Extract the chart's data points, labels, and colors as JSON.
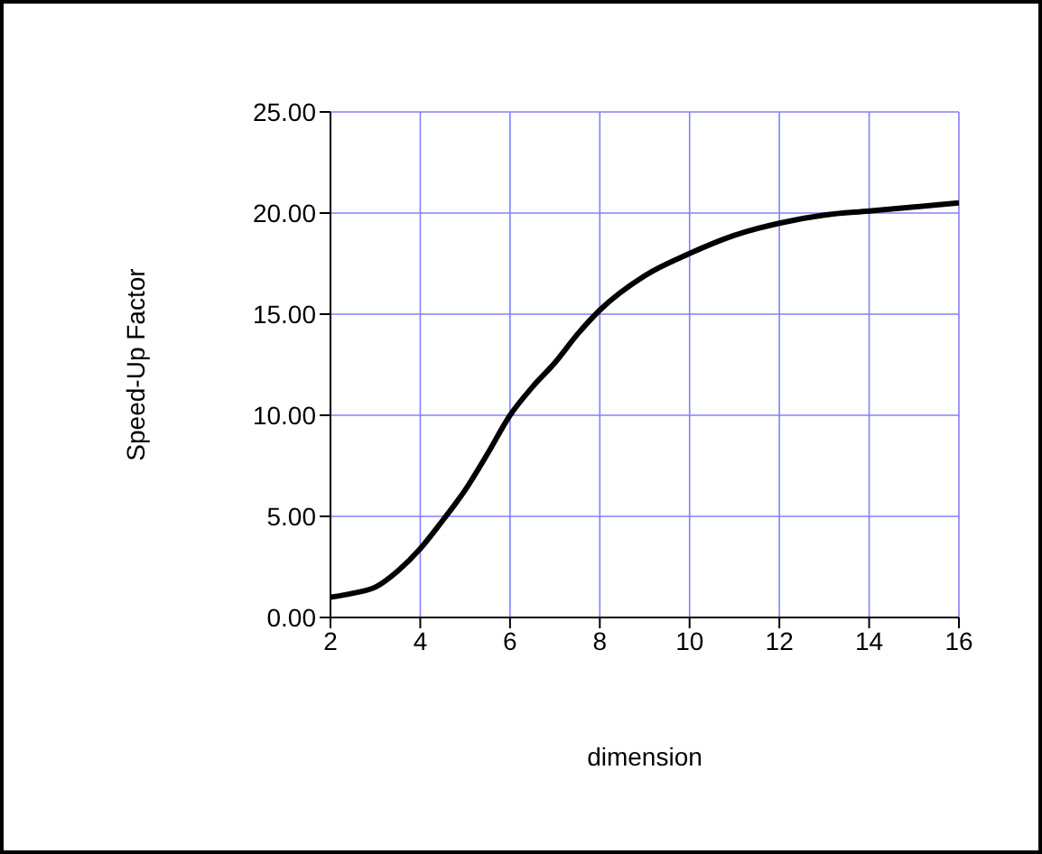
{
  "chart_data": {
    "type": "line",
    "xlabel": "dimension",
    "ylabel": "Speed-Up Factor",
    "xlim": [
      2,
      16
    ],
    "xticks": [
      2,
      4,
      6,
      8,
      10,
      12,
      14,
      16
    ],
    "ylim": [
      0,
      25
    ],
    "yticks": [
      {
        "value": 0,
        "label": "0.00"
      },
      {
        "value": 5,
        "label": "5.00"
      },
      {
        "value": 10,
        "label": "10.00"
      },
      {
        "value": 15,
        "label": "15.00"
      },
      {
        "value": 20,
        "label": "20.00"
      },
      {
        "value": 25,
        "label": "25.00"
      }
    ],
    "grid": true,
    "marker": "none",
    "line_style": "solid",
    "series": [
      {
        "color": "#000000",
        "x": [
          2,
          2.5,
          3,
          3.5,
          4,
          4.5,
          5,
          5.5,
          6,
          6.5,
          7,
          7.5,
          8,
          9,
          10,
          11,
          12,
          13,
          14,
          15,
          16
        ],
        "values": [
          1.0,
          1.2,
          1.5,
          2.3,
          3.4,
          4.8,
          6.3,
          8.1,
          10.0,
          11.4,
          12.6,
          14.0,
          15.2,
          16.9,
          18.0,
          18.9,
          19.5,
          19.9,
          20.1,
          20.3,
          20.5
        ]
      }
    ]
  }
}
